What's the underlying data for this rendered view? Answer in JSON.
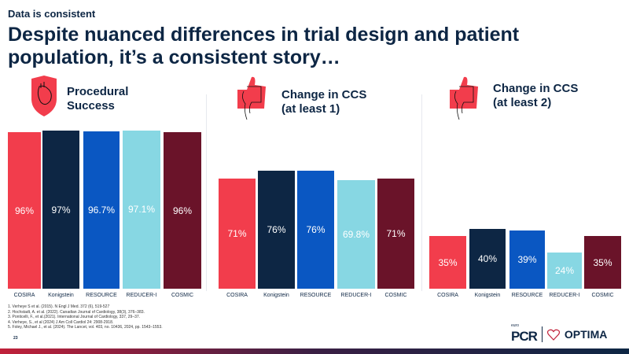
{
  "kicker": "Data is consistent",
  "title": "Despite nuanced differences in trial design and patient population, it’s a consistent story…",
  "colors": {
    "COSIRA": "#f23d4c",
    "Konigstein": "#0d2644",
    "RESOURCE": "#0a57c2",
    "REDUCER-I": "#87d7e3",
    "COSMIC": "#6a1329"
  },
  "chart_data": [
    {
      "type": "bar",
      "title": "Procedural Success",
      "icon": "shield-heart-icon",
      "categories": [
        "COSIRA",
        "Konigstein",
        "RESOURCE",
        "REDUCER-I",
        "COSMIC"
      ],
      "values": [
        96,
        97,
        96.7,
        97.1,
        96
      ],
      "labels": [
        "96%",
        "97%",
        "96.7%",
        "97.1%",
        "96%"
      ]
    },
    {
      "type": "bar",
      "title": "Change in CCS (at least 1)",
      "icon": "thumbs-up-icon",
      "categories": [
        "COSIRA",
        "Konigstein",
        "RESOURCE",
        "REDUCER-I",
        "COSMIC"
      ],
      "values": [
        71,
        76,
        76,
        69.8,
        71
      ],
      "labels": [
        "71%",
        "76%",
        "76%",
        "69.8%",
        "71%"
      ]
    },
    {
      "type": "bar",
      "title": "Change in CCS (at least 2)",
      "icon": "thumbs-up-icon",
      "categories": [
        "COSIRA",
        "Konigstein",
        "RESOURCE",
        "REDUCER-I",
        "COSMIC"
      ],
      "values": [
        35,
        40,
        39,
        24,
        35
      ],
      "labels": [
        "35%",
        "40%",
        "39%",
        "24%",
        "35%"
      ]
    }
  ],
  "titles": [
    [
      "Procedural",
      "Success"
    ],
    [
      "Change in CCS",
      "(at least 1)"
    ],
    [
      "Change in CCS",
      "(at least 2)"
    ]
  ],
  "references": [
    "1. Verheye S et al. (2015). N Engl J Med. 372 (6), 519-527",
    "2.  Hochstadt, A. et al. (2022). Canadian Journal of Cardiology, 38(3), 376–383.",
    "3. Ponticelli, F., et al.(2021). International Journal of Cardiology, 337, 29–37.",
    "4. Verheye, S., et al (2024) J Am Coll Cardiol 24: 2908-2918.",
    "5. Foley, Michael J., et al. (2024). The Lancet, vol. 403, no. 10436, 2024, pp. 1543–1553."
  ],
  "page_number": "23",
  "logo": {
    "euro": "euro",
    "pcr": "PCR",
    "optima": "OPTIMA"
  }
}
